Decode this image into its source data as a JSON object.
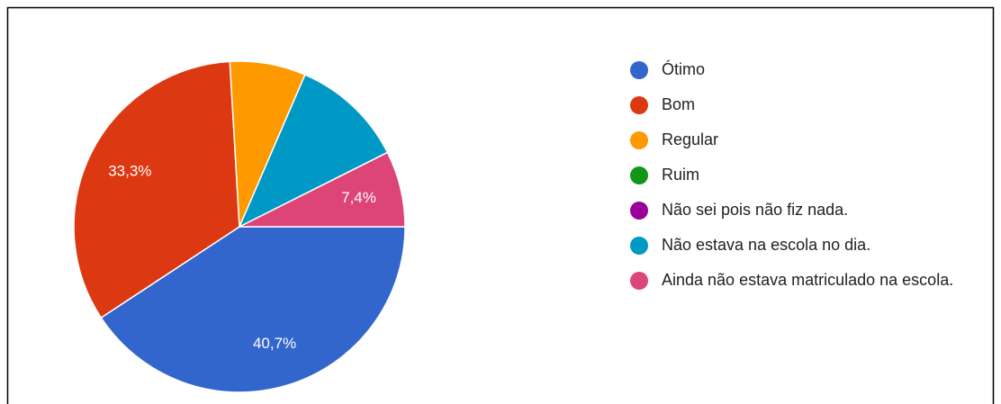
{
  "chart_data": {
    "type": "pie",
    "categories": [
      "Ótimo",
      "Bom",
      "Regular",
      "Ruim",
      "Não sei pois não fiz nada.",
      "Não estava na escola no dia.",
      "Ainda não estava matriculado na escola."
    ],
    "values": [
      40.7,
      33.3,
      7.4,
      0,
      0,
      11.1,
      7.4
    ],
    "value_labels": [
      "40,7%",
      "33,3%",
      null,
      null,
      null,
      null,
      "7,4%"
    ],
    "colors": [
      "#3366cc",
      "#dc3912",
      "#ff9900",
      "#109618",
      "#990099",
      "#0099c6",
      "#dd4477"
    ],
    "legend": "right"
  }
}
